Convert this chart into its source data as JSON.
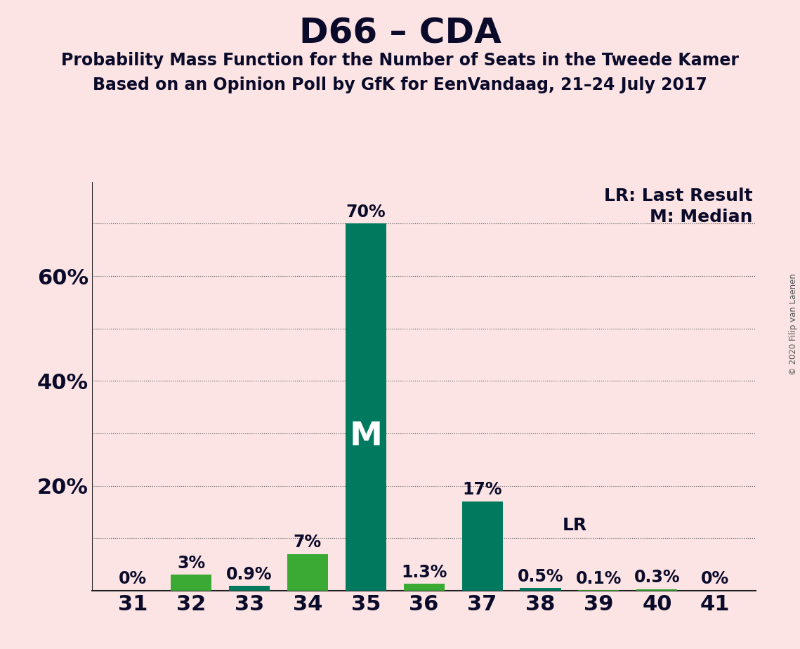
{
  "title": "D66 – CDA",
  "subtitle1": "Probability Mass Function for the Number of Seats in the Tweede Kamer",
  "subtitle2": "Based on an Opinion Poll by GfK for EenVandaag, 21–24 July 2017",
  "copyright": "© 2020 Filip van Laenen",
  "seats": [
    31,
    32,
    33,
    34,
    35,
    36,
    37,
    38,
    39,
    40,
    41
  ],
  "values": [
    0.0,
    3.0,
    0.9,
    7.0,
    70.0,
    1.3,
    17.0,
    0.5,
    0.1,
    0.3,
    0.0
  ],
  "labels": [
    "0%",
    "3%",
    "0.9%",
    "7%",
    "70%",
    "1.3%",
    "17%",
    "0.5%",
    "0.1%",
    "0.3%",
    "0%"
  ],
  "bar_colors": [
    "#3aaa35",
    "#3aaa35",
    "#007a5e",
    "#3aaa35",
    "#007a5e",
    "#3aaa35",
    "#007a5e",
    "#007a5e",
    "#3aaa35",
    "#3aaa35",
    "#3aaa35"
  ],
  "median_seat": 35,
  "lr_seat": 38,
  "lr_label": "LR",
  "median_label": "M",
  "background_color": "#fce4e4",
  "ylim": [
    0,
    78
  ],
  "legend_lr": "LR: Last Result",
  "legend_m": "M: Median",
  "title_fontsize": 36,
  "subtitle_fontsize": 17,
  "axis_fontsize": 22,
  "label_fontsize": 17,
  "ytick_major": [
    20,
    40,
    60
  ],
  "ytick_minor_all": [
    10,
    20,
    30,
    40,
    50,
    60,
    70
  ]
}
